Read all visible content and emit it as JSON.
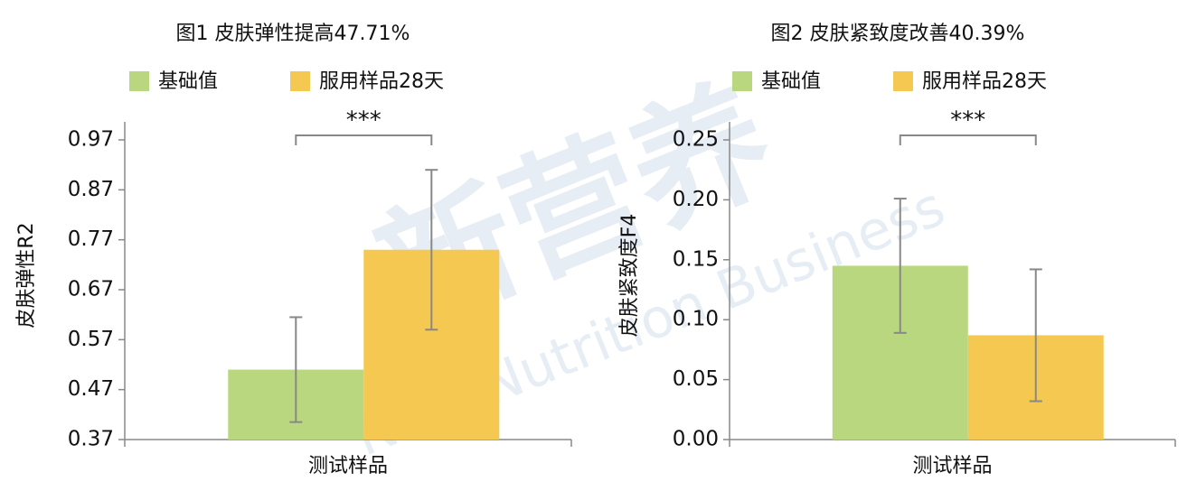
{
  "chart_data": [
    {
      "type": "bar",
      "title": "图1 皮肤弹性提高47.71%",
      "y_label": "皮肤弹性R2",
      "categories": [
        "测试样品"
      ],
      "series": [
        {
          "name": "基础值",
          "color": "#b9d77e",
          "values": [
            0.51
          ],
          "errors": [
            0.105
          ]
        },
        {
          "name": "服用样品28天",
          "color": "#f5c851",
          "values": [
            0.75
          ],
          "errors": [
            0.16
          ]
        }
      ],
      "annotation": "***",
      "ylim": [
        0.37,
        0.97
      ],
      "yticks": [
        0.37,
        0.47,
        0.57,
        0.67,
        0.77,
        0.87,
        0.97
      ]
    },
    {
      "type": "bar",
      "title": "图2 皮肤紧致度改善40.39%",
      "y_label": "皮肤紧致度F4",
      "categories": [
        "测试样品"
      ],
      "series": [
        {
          "name": "基础值",
          "color": "#b9d77e",
          "values": [
            0.145
          ],
          "errors": [
            0.056
          ]
        },
        {
          "name": "服用样品28天",
          "color": "#f5c851",
          "values": [
            0.087
          ],
          "errors": [
            0.055
          ]
        }
      ],
      "annotation": "***",
      "ylim": [
        0,
        0.25
      ],
      "yticks": [
        {
          "value": 0,
          "label": "0.00"
        },
        0.05,
        {
          "value": 0.1,
          "label": "0.10"
        },
        0.15,
        {
          "value": 0.2,
          "label": "0.20"
        },
        0.25
      ]
    }
  ],
  "watermark": {
    "logo": "新营养",
    "text": "New Nutrition Business"
  }
}
